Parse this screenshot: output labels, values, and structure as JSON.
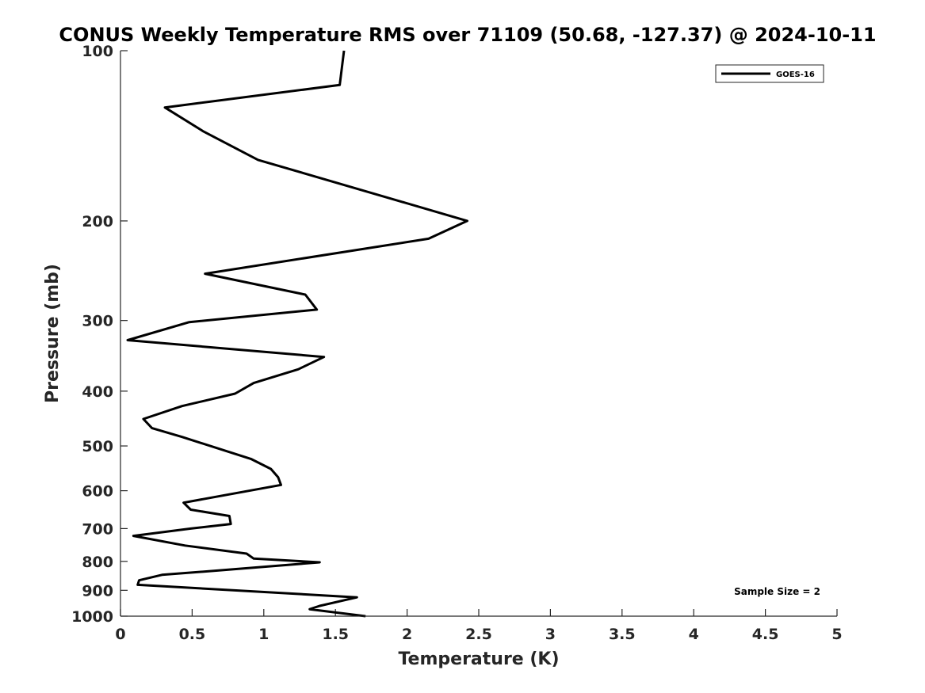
{
  "chart_data": {
    "type": "line",
    "title": "CONUS Weekly Temperature RMS over 71109 (50.68, -127.37) @ 2024-10-11",
    "xlabel": "Temperature (K)",
    "ylabel": "Pressure (mb)",
    "xlim": [
      0,
      5
    ],
    "ylim": [
      100,
      1000
    ],
    "y_scale": "log",
    "y_reversed": true,
    "x_ticks": [
      "0",
      "0.5",
      "1",
      "1.5",
      "2",
      "2.5",
      "3",
      "3.5",
      "4",
      "4.5",
      "5"
    ],
    "y_ticks": [
      "100",
      "200",
      "300",
      "400",
      "500",
      "600",
      "700",
      "800",
      "900",
      "1000"
    ],
    "grid": false,
    "legend_position": "top-right",
    "series": [
      {
        "name": "GOES-16",
        "color": "#000000",
        "x": [
          1.56,
          1.53,
          0.31,
          0.58,
          0.96,
          2.42,
          2.15,
          0.59,
          1.29,
          1.37,
          0.48,
          0.05,
          1.42,
          1.24,
          0.93,
          0.8,
          0.43,
          0.16,
          0.22,
          0.43,
          0.91,
          1.05,
          1.1,
          1.12,
          0.44,
          0.49,
          0.76,
          0.77,
          0.49,
          0.09,
          0.45,
          0.88,
          0.93,
          1.39,
          0.72,
          0.29,
          0.13,
          0.12,
          1.65,
          1.39,
          1.32,
          1.71
        ],
        "y": [
          100,
          115,
          126,
          139,
          156,
          200,
          215,
          248,
          270,
          287,
          302,
          325,
          348,
          366,
          387,
          404,
          425,
          448,
          465,
          482,
          527,
          549,
          568,
          586,
          630,
          648,
          665,
          687,
          700,
          721,
          750,
          775,
          791,
          803,
          829,
          845,
          864,
          880,
          926,
          959,
          972,
          1000
        ]
      }
    ],
    "annotations": [
      "Sample Size = 2"
    ]
  }
}
